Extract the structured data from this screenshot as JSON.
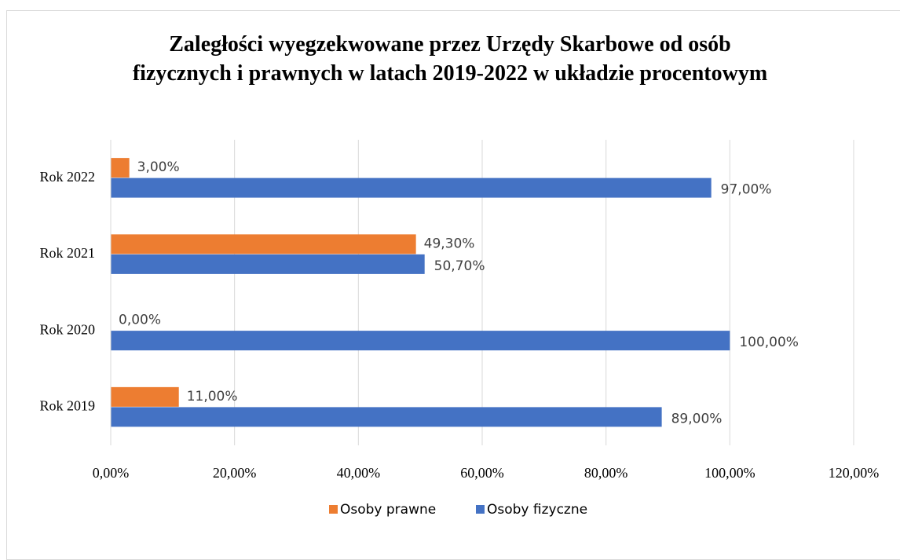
{
  "chart_data": {
    "type": "barh",
    "title": "Zaległości wyegzekwowane przez Urzędy Skarbowe od osób fizycznych i prawnych w latach 2019-2022 w układzie procentowym",
    "categories": [
      "Rok 2019",
      "Rok 2020",
      "Rok 2021",
      "Rok 2022"
    ],
    "series": [
      {
        "name": "Osoby prawne",
        "color": "#ed7d31",
        "values": [
          11,
          0,
          49.3,
          3
        ],
        "value_labels": [
          "11,00%",
          "0,00%",
          "49,30%",
          "3,00%"
        ]
      },
      {
        "name": "Osoby fizyczne",
        "color": "#4472c4",
        "values": [
          89,
          100,
          50.7,
          97
        ],
        "value_labels": [
          "89,00%",
          "100,00%",
          "50,70%",
          "97,00%"
        ]
      }
    ],
    "xlim": [
      0,
      120
    ],
    "xticks": [
      {
        "value": 0,
        "label": "0,00%"
      },
      {
        "value": 20,
        "label": "20,00%"
      },
      {
        "value": 40,
        "label": "40,00%"
      },
      {
        "value": 60,
        "label": "60,00%"
      },
      {
        "value": 80,
        "label": "80,00%"
      },
      {
        "value": 100,
        "label": "100,00%"
      },
      {
        "value": 120,
        "label": "120,00%"
      }
    ],
    "grid": true,
    "legend": "bottom"
  }
}
